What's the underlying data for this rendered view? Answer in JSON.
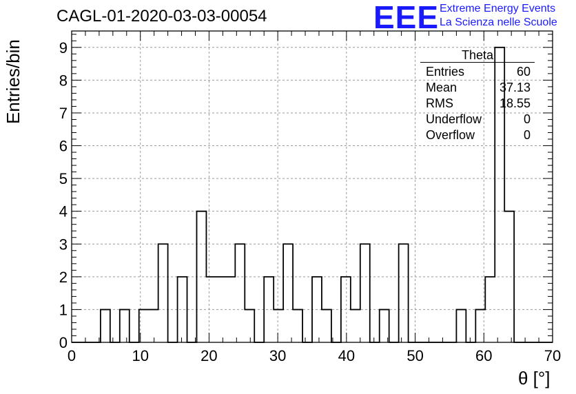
{
  "header": {
    "title": "CAGL-01-2020-03-03-00054",
    "logo_text": "EEE",
    "logo_line1": "Extreme Energy Events",
    "logo_line2": "La Scienza nelle Scuole",
    "logo_color": "#1a1aff"
  },
  "stats": {
    "title": "Theta",
    "rows": [
      {
        "label": "Entries",
        "value": "60"
      },
      {
        "label": "Mean",
        "value": "37.13"
      },
      {
        "label": "RMS",
        "value": "18.55"
      },
      {
        "label": "Underflow",
        "value": "0"
      },
      {
        "label": "Overflow",
        "value": "0"
      }
    ]
  },
  "chart_data": {
    "type": "histogram",
    "xlabel": "θ [°]",
    "ylabel": "Entries/bin",
    "xlim": [
      0,
      70
    ],
    "ylim": [
      0,
      9.5
    ],
    "bin_width": 1.4,
    "x_ticks": [
      0,
      10,
      20,
      30,
      40,
      50,
      60,
      70
    ],
    "y_ticks": [
      0,
      1,
      2,
      3,
      4,
      5,
      6,
      7,
      8,
      9
    ],
    "grid": true,
    "values": [
      0,
      0,
      0,
      1,
      0,
      1,
      0,
      1,
      1,
      3,
      0,
      2,
      0,
      4,
      2,
      2,
      2,
      3,
      1,
      0,
      2,
      1,
      3,
      1,
      0,
      2,
      1,
      0,
      2,
      1,
      3,
      0,
      1,
      0,
      3,
      0,
      0,
      0,
      0,
      0,
      1,
      0,
      1,
      2,
      9,
      4,
      0,
      0,
      0,
      0
    ]
  }
}
